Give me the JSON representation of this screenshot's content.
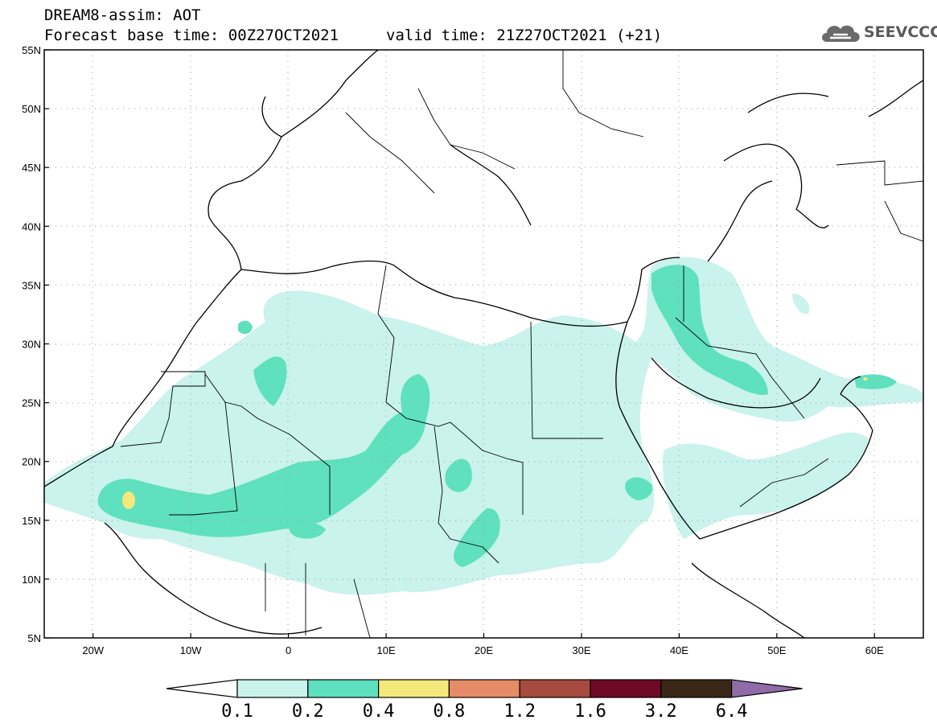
{
  "header": {
    "title": "DREAM8-assim: AOT",
    "base_time": "Forecast base time: 00Z27OCT2021",
    "valid_time": "valid time: 21Z27OCT2021 (+21)"
  },
  "logo": {
    "text": "SEEVCCC",
    "icon": "cloud-icon"
  },
  "map": {
    "lat_labels": [
      "55N",
      "50N",
      "45N",
      "40N",
      "35N",
      "30N",
      "25N",
      "20N",
      "15N",
      "10N",
      "5N"
    ],
    "lon_labels": [
      "20W",
      "10W",
      "0",
      "10E",
      "20E",
      "30E",
      "40E",
      "50E",
      "60E"
    ],
    "lon_range": [
      -25,
      65
    ],
    "lat_range": [
      5,
      55
    ]
  },
  "colorbar": {
    "labels": [
      "0.1",
      "0.2",
      "0.4",
      "0.8",
      "1.2",
      "1.6",
      "3.2",
      "6.4"
    ],
    "colors": [
      "#ffffff",
      "#c9f3ec",
      "#5fe0bf",
      "#f3e87a",
      "#e68b67",
      "#a54b3f",
      "#6f0a26",
      "#3a2718",
      "#8f6ba8"
    ]
  }
}
